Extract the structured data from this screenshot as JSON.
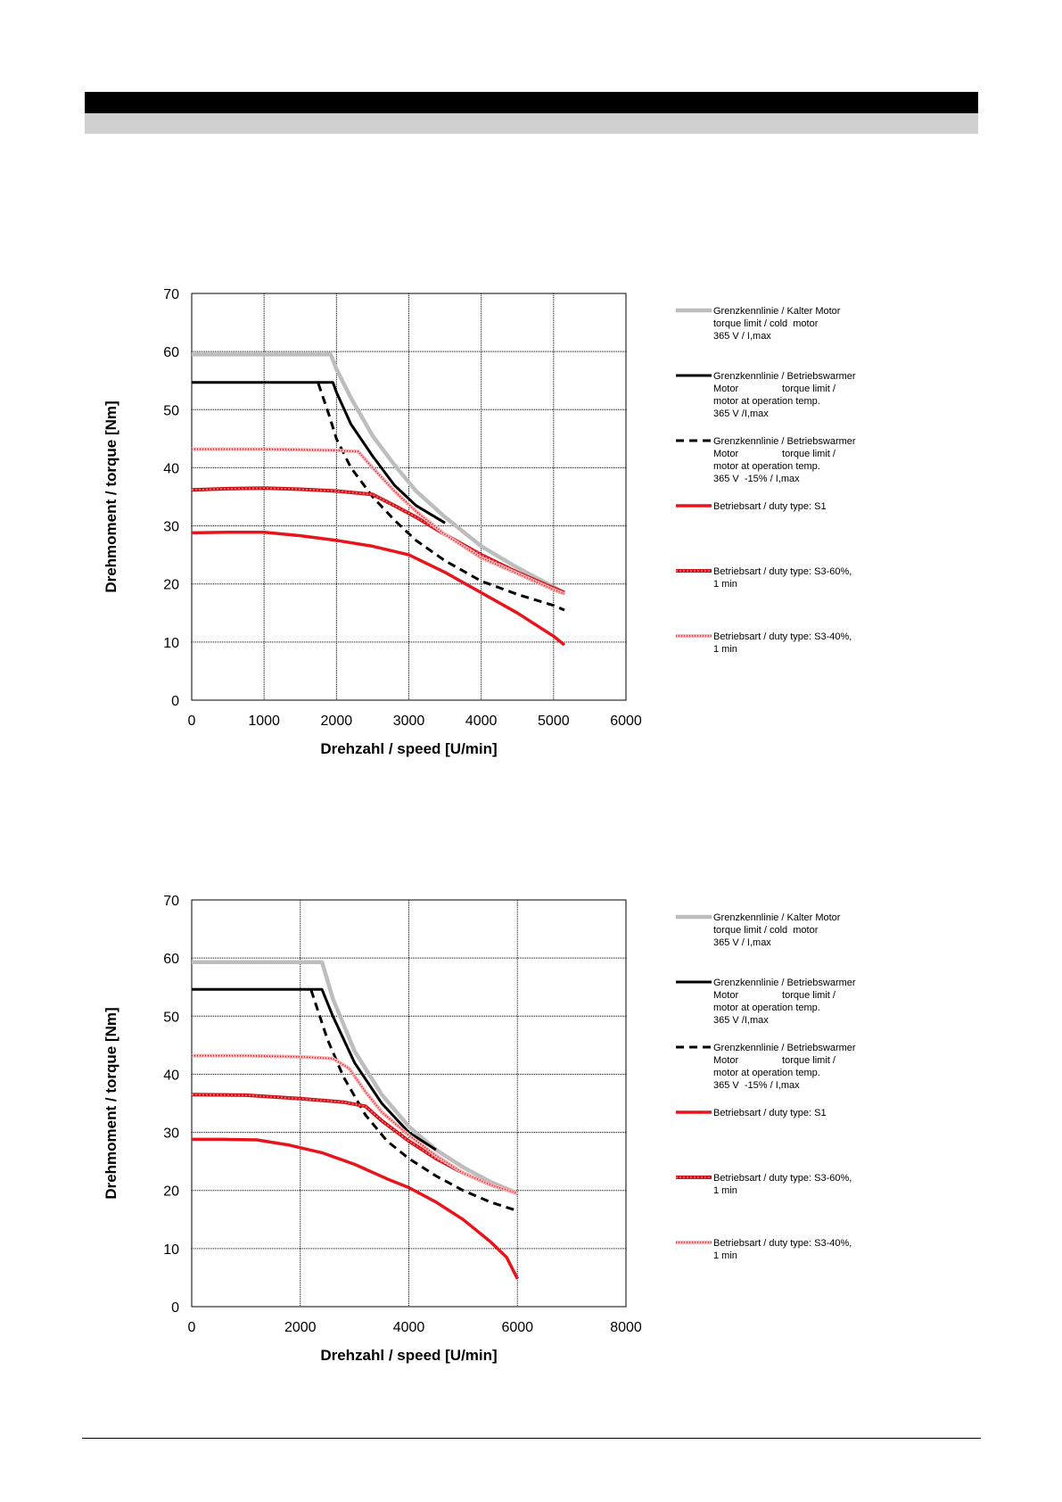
{
  "chart_data": [
    {
      "type": "line",
      "xlabel": "Drehzahl / speed [U/min]",
      "ylabel": "Drehmoment / torque [Nm]",
      "xlim": [
        0,
        6000
      ],
      "ylim": [
        0,
        70
      ],
      "xticks": [
        0,
        1000,
        2000,
        3000,
        4000,
        5000,
        6000
      ],
      "yticks": [
        0,
        10,
        20,
        30,
        40,
        50,
        60,
        70
      ],
      "grid": true,
      "legend_position": "right",
      "series": [
        {
          "name": "Grenzkennlinie / Kalter Motor torque limit / cold motor 365 V / I,max",
          "legend_lines": [
            "Grenzkennlinie / Kalter Motor",
            "torque limit / cold  motor",
            "365 V / I,max"
          ],
          "style": "cold",
          "color": "#bdbdbd",
          "x": [
            0,
            1920,
            2000,
            2200,
            2500,
            2800,
            3100,
            3500,
            4000,
            4500,
            5000,
            5150
          ],
          "y": [
            59.5,
            59.5,
            57,
            52,
            45.5,
            40.5,
            36,
            31.5,
            26.5,
            22.8,
            19.5,
            18.5
          ]
        },
        {
          "name": "Grenzkennlinie / Betriebswarmer Motor torque limit / motor at operation temp. 365 V /I,max",
          "legend_lines": [
            "Grenzkennlinie / Betriebswarmer",
            "Motor                torque limit /",
            "motor at operation temp.",
            "365 V /I,max"
          ],
          "style": "warm",
          "color": "#000000",
          "x": [
            0,
            1950,
            2000,
            2200,
            2500,
            2800,
            3100,
            3500
          ],
          "y": [
            54.7,
            54.7,
            53,
            47.5,
            42,
            37,
            33.5,
            30.5
          ]
        },
        {
          "name": "Grenzkennlinie / Betriebswarmer Motor torque limit / motor at operation temp. 365 V -15% / I,max",
          "legend_lines": [
            "Grenzkennlinie / Betriebswarmer",
            "Motor                torque limit /",
            "motor at operation temp.",
            "365 V  -15% / I,max"
          ],
          "style": "dashed",
          "color": "#000000",
          "x": [
            1750,
            1900,
            2000,
            2200,
            2500,
            2800,
            3100,
            3500,
            4000,
            4500,
            5000,
            5150
          ],
          "y": [
            54.5,
            49,
            45,
            40,
            35,
            31,
            27.5,
            24,
            20.5,
            18.2,
            16.3,
            15.5
          ]
        },
        {
          "name": "Betriebsart / duty type: S1",
          "legend_lines": [
            "Betriebsart / duty type: S1"
          ],
          "style": "s1",
          "color": "#e8141b",
          "x": [
            0,
            500,
            1000,
            1500,
            2000,
            2500,
            3000,
            3500,
            4000,
            4500,
            5000,
            5150
          ],
          "y": [
            28.8,
            28.9,
            28.9,
            28.3,
            27.5,
            26.5,
            25,
            22,
            18.5,
            15,
            11,
            9.5
          ]
        },
        {
          "name": "Betriebsart / duty type: S3-60%, 1 min",
          "legend_lines": [
            "Betriebsart / duty type: S3-60%,",
            "1 min"
          ],
          "style": "s3-60",
          "color": "#e8141b",
          "x": [
            0,
            500,
            1000,
            1500,
            2000,
            2500,
            2800,
            3100,
            3500,
            4000,
            4500,
            5000,
            5150
          ],
          "y": [
            36.2,
            36.4,
            36.5,
            36.3,
            36,
            35.4,
            33.5,
            31.5,
            28.5,
            25,
            22,
            19.3,
            18.5
          ]
        },
        {
          "name": "Betriebsart / duty type: S3-40%, 1 min",
          "legend_lines": [
            "Betriebsart / duty type: S3-40%,",
            "1 min"
          ],
          "style": "s3-40",
          "color": "#f08a8d",
          "x": [
            0,
            500,
            1000,
            1500,
            2000,
            2300,
            2500,
            2800,
            3100,
            3500,
            4000,
            4500,
            5000,
            5150
          ],
          "y": [
            43.2,
            43.2,
            43.2,
            43.1,
            43,
            42.8,
            40,
            36,
            32.5,
            28.5,
            24.5,
            21.8,
            19,
            18.3
          ]
        }
      ]
    },
    {
      "type": "line",
      "xlabel": "Drehzahl / speed [U/min]",
      "ylabel": "Drehmoment / torque [Nm]",
      "xlim": [
        0,
        8000
      ],
      "ylim": [
        0,
        70
      ],
      "xticks": [
        0,
        2000,
        4000,
        6000,
        8000
      ],
      "yticks": [
        0,
        10,
        20,
        30,
        40,
        50,
        60,
        70
      ],
      "grid": true,
      "legend_position": "right",
      "series": [
        {
          "name": "Grenzkennlinie / Kalter Motor torque limit / cold motor 365 V / I,max",
          "legend_lines": [
            "Grenzkennlinie / Kalter Motor",
            "torque limit / cold  motor",
            "365 V / I,max"
          ],
          "style": "cold",
          "color": "#bdbdbd",
          "x": [
            0,
            2400,
            2600,
            3000,
            3500,
            4000,
            4500,
            5000,
            5500,
            6000
          ],
          "y": [
            59.3,
            59.3,
            53,
            44,
            36.5,
            31,
            27,
            24,
            21.5,
            19.5
          ]
        },
        {
          "name": "Grenzkennlinie / Betriebswarmer Motor torque limit / motor at operation temp. 365 V /I,max",
          "legend_lines": [
            "Grenzkennlinie / Betriebswarmer",
            "Motor                torque limit /",
            "motor at operation temp.",
            "365 V /I,max"
          ],
          "style": "warm",
          "color": "#000000",
          "x": [
            0,
            2400,
            2600,
            3000,
            3500,
            4000,
            4500
          ],
          "y": [
            54.6,
            54.6,
            50,
            42,
            35,
            30,
            27
          ]
        },
        {
          "name": "Grenzkennlinie / Betriebswarmer Motor torque limit / motor at operation temp. 365 V -15% / I,max",
          "legend_lines": [
            "Grenzkennlinie / Betriebswarmer",
            "Motor                torque limit /",
            "motor at operation temp.",
            "365 V  -15% / I,max"
          ],
          "style": "dashed",
          "color": "#000000",
          "x": [
            2200,
            2500,
            2800,
            3200,
            3600,
            4000,
            4500,
            5000,
            5500,
            6000
          ],
          "y": [
            54.5,
            46,
            39.5,
            33,
            28.5,
            25.5,
            22.5,
            20,
            18,
            16.5
          ]
        },
        {
          "name": "Betriebsart / duty type: S1",
          "legend_lines": [
            "Betriebsart / duty type: S1"
          ],
          "style": "s1",
          "color": "#e8141b",
          "x": [
            0,
            600,
            1200,
            1800,
            2400,
            3000,
            3600,
            4000,
            4500,
            5000,
            5500,
            5800,
            6000
          ],
          "y": [
            28.8,
            28.8,
            28.7,
            27.8,
            26.5,
            24.5,
            22,
            20.5,
            18,
            15,
            11.2,
            8.5,
            4.8
          ]
        },
        {
          "name": "Betriebsart / duty type: S3-60%, 1 min",
          "legend_lines": [
            "Betriebsart / duty type: S3-60%,",
            "1 min"
          ],
          "style": "s3-60",
          "color": "#e8141b",
          "x": [
            0,
            1000,
            2000,
            2800,
            3200,
            3500,
            4000,
            4500,
            5000,
            5500,
            6000
          ],
          "y": [
            36.5,
            36.4,
            35.8,
            35.2,
            34.5,
            32,
            28.5,
            25.5,
            23,
            21,
            19.5
          ]
        },
        {
          "name": "Betriebsart / duty type: S3-40%, 1 min",
          "legend_lines": [
            "Betriebsart / duty type: S3-40%,",
            "1 min"
          ],
          "style": "s3-40",
          "color": "#f08a8d",
          "x": [
            0,
            1000,
            2000,
            2600,
            2900,
            3200,
            3500,
            4000,
            4500,
            5000,
            5500,
            6000
          ],
          "y": [
            43.2,
            43.2,
            43,
            42.7,
            41,
            37,
            33.5,
            29.5,
            26,
            23,
            21,
            19.5
          ]
        }
      ]
    }
  ]
}
